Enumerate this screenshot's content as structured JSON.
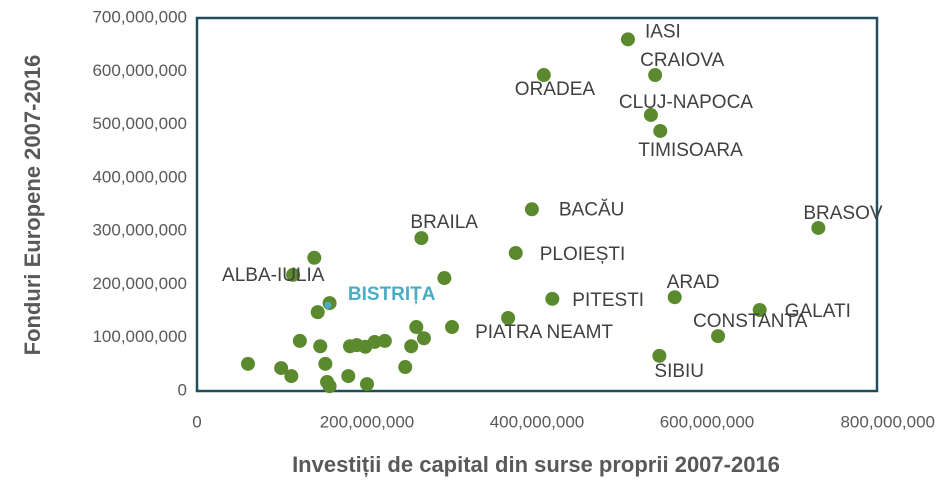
{
  "chart_data": {
    "type": "scatter",
    "xlabel": "Investiții de capital din surse proprii 2007-2016",
    "ylabel": "Fonduri Europene 2007-2016",
    "xlim": [
      0,
      800000000
    ],
    "ylim": [
      0,
      700000000
    ],
    "xticks": [
      0,
      {
        "value": 200000000,
        "label": "200,000,000"
      },
      {
        "value": 400000000,
        "label": "400,000,000"
      },
      {
        "value": 600000000,
        "label": "600,000,000"
      },
      {
        "value": 800000000,
        "label": "800,000,000"
      }
    ],
    "yticks": [
      0,
      {
        "value": 100000000,
        "label": "100,000,000"
      },
      {
        "value": 200000000,
        "label": "200,000,000"
      },
      {
        "value": 300000000,
        "label": "300,000,000"
      },
      {
        "value": 400000000,
        "label": "400,000,000"
      },
      {
        "value": 500000000,
        "label": "500,000,000"
      },
      {
        "value": 600000000,
        "label": "600,000,000"
      },
      {
        "value": 700000000,
        "label": "700,000,000"
      }
    ],
    "series": [
      {
        "color": "#5b8a2e",
        "x": [
          507000000,
          539000000,
          408000000,
          534000000,
          545000000,
          394000000,
          731000000,
          264000000,
          375000000,
          113000000,
          418000000,
          562000000,
          662000000,
          613000000,
          366000000,
          544000000,
          60000000,
          99000000,
          111000000,
          138000000,
          121000000,
          145000000,
          142000000,
          151000000,
          153000000,
          156000000,
          156000000,
          178000000,
          180000000,
          188000000,
          198000000,
          209000000,
          221000000,
          200000000,
          245000000,
          252000000,
          258000000,
          267000000,
          291000000,
          300000000
        ],
        "y": [
          660000000,
          593000000,
          593000000,
          518000000,
          488000000,
          341000000,
          306000000,
          287000000,
          259000000,
          218000000,
          173000000,
          176000000,
          152000000,
          103000000,
          137000000,
          66000000,
          51000000,
          43000000,
          28000000,
          250000000,
          94000000,
          84000000,
          148000000,
          51000000,
          17000000,
          9000000,
          165000000,
          28000000,
          84000000,
          86000000,
          83000000,
          92000000,
          94000000,
          13000000,
          45000000,
          84000000,
          120000000,
          99000000,
          212000000,
          120000000
        ],
        "labels": [
          "IASI",
          "CRAIOVA",
          "ORADEA",
          "CLUJ-NAPOCA",
          "TIMISOARA",
          "BACĂU",
          "BRASOV",
          "BRAILA",
          "PLOIEȘTI",
          "ALBA-IULIA",
          "PITESTI",
          "ARAD",
          "GALATI",
          "CONSTANTA",
          "PIATRA NEAMT",
          "SIBIU",
          null,
          null,
          null,
          null,
          null,
          null,
          null,
          null,
          null,
          null,
          null,
          null,
          null,
          null,
          null,
          null,
          null,
          null,
          null,
          null,
          null,
          null,
          null,
          null
        ]
      },
      {
        "color": "#4bacc6",
        "x": [
          154000000
        ],
        "y": [
          161000000
        ],
        "labels": [
          "BISTRIȚA"
        ]
      }
    ]
  }
}
